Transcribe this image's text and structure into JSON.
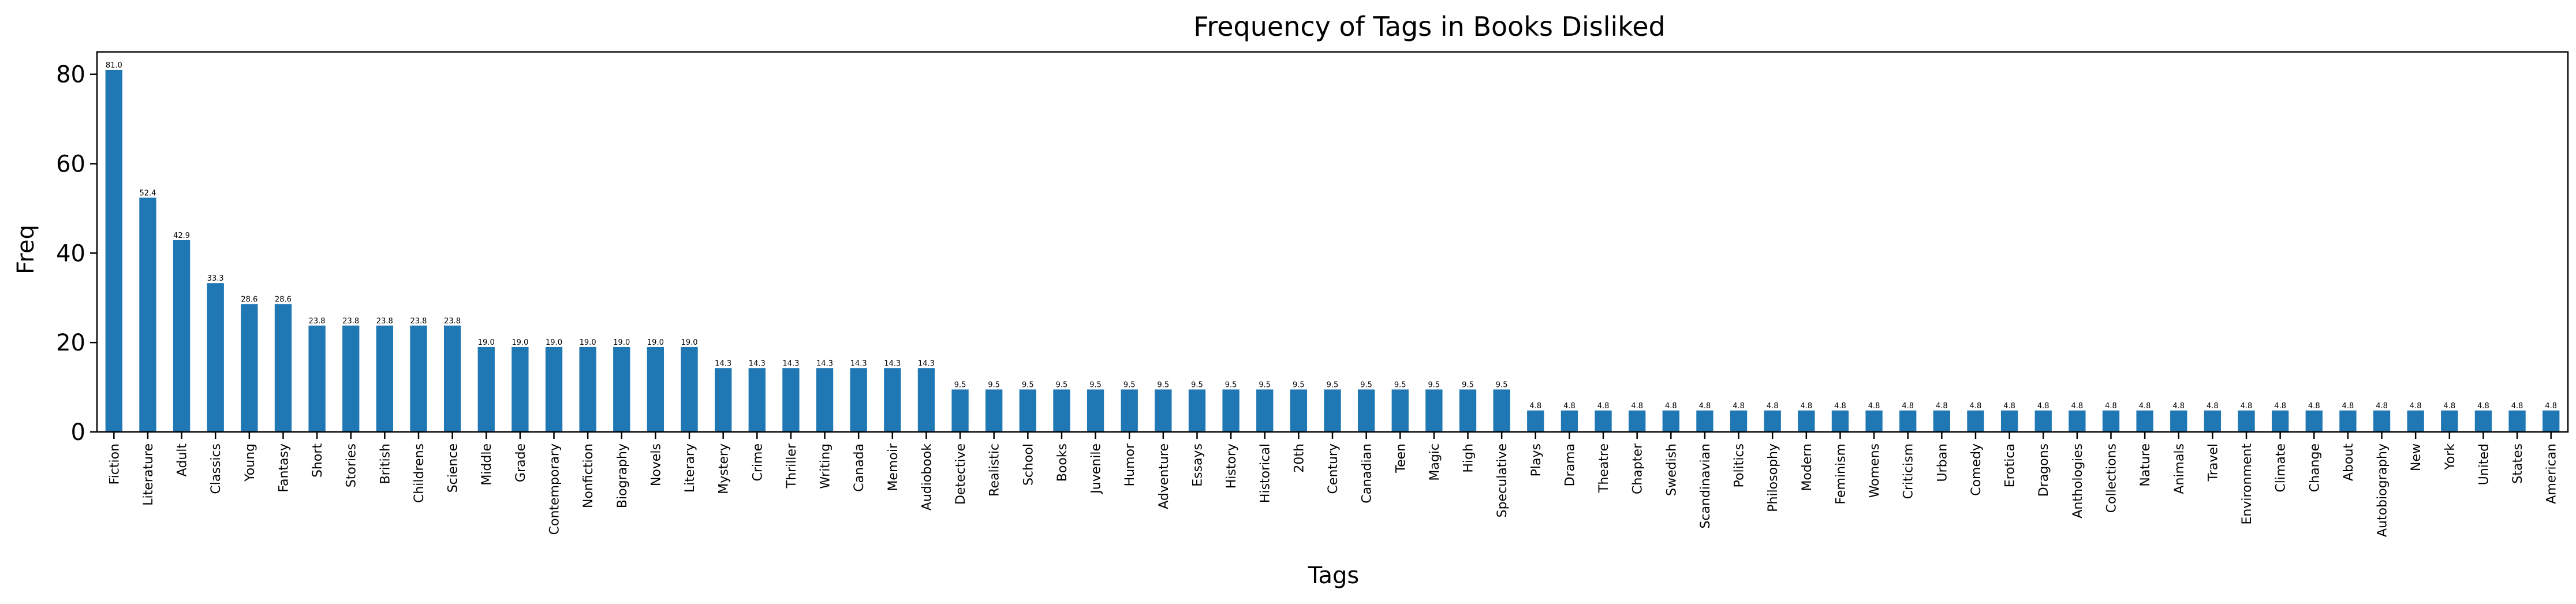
{
  "chart_data": {
    "type": "bar",
    "title": "Frequency of Tags in Books Disliked",
    "xlabel": "Tags",
    "ylabel": "Freq",
    "ylim": [
      0,
      85
    ],
    "yticks": [
      0,
      20,
      40,
      60,
      80
    ],
    "grid": false,
    "bar_color": "#1f77b4",
    "categories": [
      "Fiction",
      "Literature",
      "Adult",
      "Classics",
      "Young",
      "Fantasy",
      "Short",
      "Stories",
      "British",
      "Childrens",
      "Science",
      "Middle",
      "Grade",
      "Contemporary",
      "Nonfiction",
      "Biography",
      "Novels",
      "Literary",
      "Mystery",
      "Crime",
      "Thriller",
      "Writing",
      "Canada",
      "Memoir",
      "Audiobook",
      "Detective",
      "Realistic",
      "School",
      "Books",
      "Juvenile",
      "Humor",
      "Adventure",
      "Essays",
      "History",
      "Historical",
      "20th",
      "Century",
      "Canadian",
      "Teen",
      "Magic",
      "High",
      "Speculative",
      "Plays",
      "Drama",
      "Theatre",
      "Chapter",
      "Swedish",
      "Scandinavian",
      "Politics",
      "Philosophy",
      "Modern",
      "Feminism",
      "Womens",
      "Criticism",
      "Urban",
      "Comedy",
      "Erotica",
      "Dragons",
      "Anthologies",
      "Collections",
      "Nature",
      "Animals",
      "Travel",
      "Environment",
      "Climate",
      "Change",
      "About",
      "Autobiography",
      "New",
      "York",
      "United",
      "States",
      "American"
    ],
    "values": [
      81.0,
      52.4,
      42.9,
      33.3,
      28.6,
      28.6,
      23.8,
      23.8,
      23.8,
      23.8,
      23.8,
      19.0,
      19.0,
      19.0,
      19.0,
      19.0,
      19.0,
      19.0,
      14.3,
      14.3,
      14.3,
      14.3,
      14.3,
      14.3,
      14.3,
      9.5,
      9.5,
      9.5,
      9.5,
      9.5,
      9.5,
      9.5,
      9.5,
      9.5,
      9.5,
      9.5,
      9.5,
      9.5,
      9.5,
      9.5,
      9.5,
      9.5,
      4.8,
      4.8,
      4.8,
      4.8,
      4.8,
      4.8,
      4.8,
      4.8,
      4.8,
      4.8,
      4.8,
      4.8,
      4.8,
      4.8,
      4.8,
      4.8,
      4.8,
      4.8,
      4.8,
      4.8,
      4.8,
      4.8,
      4.8,
      4.8,
      4.8,
      4.8,
      4.8,
      4.8,
      4.8,
      4.8,
      4.8
    ],
    "data_labels": [
      "81.0",
      "52.4",
      "42.9",
      "33.3",
      "28.6",
      "28.6",
      "23.8",
      "23.8",
      "23.8",
      "23.8",
      "23.8",
      "19.0",
      "19.0",
      "19.0",
      "19.0",
      "19.0",
      "19.0",
      "19.0",
      "14.3",
      "14.3",
      "14.3",
      "14.3",
      "14.3",
      "14.3",
      "14.3",
      "9.5",
      "9.5",
      "9.5",
      "9.5",
      "9.5",
      "9.5",
      "9.5",
      "9.5",
      "9.5",
      "9.5",
      "9.5",
      "9.5",
      "9.5",
      "9.5",
      "9.5",
      "9.5",
      "9.5",
      "4.8",
      "4.8",
      "4.8",
      "4.8",
      "4.8",
      "4.8",
      "4.8",
      "4.8",
      "4.8",
      "4.8",
      "4.8",
      "4.8",
      "4.8",
      "4.8",
      "4.8",
      "4.8",
      "4.8",
      "4.8",
      "4.8",
      "4.8",
      "4.8",
      "4.8",
      "4.8",
      "4.8",
      "4.8",
      "4.8",
      "4.8",
      "4.8",
      "4.8",
      "4.8",
      "4.8"
    ]
  }
}
